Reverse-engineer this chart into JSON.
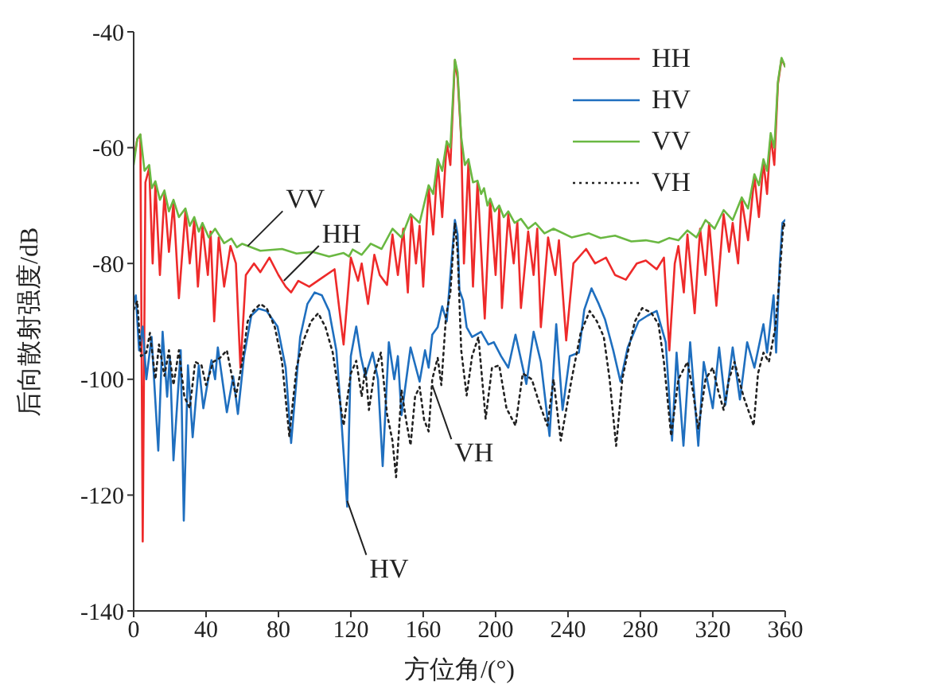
{
  "chart_data": {
    "type": "line",
    "xlabel": "方位角/(°)",
    "ylabel": "后向散射强度/dB",
    "xlim": [
      0,
      360
    ],
    "xticks": [
      0,
      40,
      80,
      120,
      160,
      200,
      240,
      280,
      320,
      360
    ],
    "ylim": [
      -140,
      -40
    ],
    "yticks": [
      -140,
      -120,
      -100,
      -80,
      -60,
      -40
    ],
    "grid": false,
    "legend": "top right",
    "marker": "none",
    "annotations": [
      {
        "text": "VV",
        "x": 63,
        "y": -77
      },
      {
        "text": "HH",
        "x": 83,
        "y": -83
      },
      {
        "text": "VH",
        "x": 165,
        "y": -101
      },
      {
        "text": "HV",
        "x": 118,
        "y": -121
      }
    ],
    "series": [
      {
        "name": "HH",
        "color": "#ee2a2a",
        "line_style": "solid",
        "x": [
          0,
          2,
          3.7,
          5,
          6.5,
          8.6,
          10.5,
          12,
          14.5,
          17,
          19.5,
          22,
          25,
          28.6,
          31,
          33.5,
          35.5,
          38,
          41,
          42.5,
          44.5,
          47,
          50,
          53.5,
          56.5,
          59,
          62,
          66.5,
          70,
          75,
          80,
          84,
          87,
          91,
          97,
          104,
          111,
          116,
          120,
          124,
          126,
          129.5,
          133,
          136,
          140,
          143,
          146,
          149,
          151.5,
          153.5,
          156,
          158,
          160,
          163,
          165.5,
          168,
          170.5,
          173,
          175,
          177.5,
          179,
          181,
          182.5,
          185,
          187.5,
          190,
          194,
          197,
          200,
          202,
          203.5,
          207,
          210,
          212,
          214,
          218,
          221,
          223,
          225,
          229,
          233,
          235,
          239,
          243,
          250,
          255,
          261,
          266,
          272,
          278,
          283,
          289,
          293,
          296,
          299,
          301,
          304,
          306,
          310,
          313,
          316,
          318,
          322,
          326,
          329,
          331,
          334,
          336,
          339.5,
          343,
          345.5,
          348,
          350,
          352,
          354,
          356,
          358,
          360
        ],
        "values": [
          -62,
          -58.5,
          -57.8,
          -128,
          -66,
          -63.5,
          -80,
          -66.2,
          -82,
          -68,
          -78,
          -69.5,
          -86,
          -71,
          -80,
          -72.5,
          -84,
          -73.5,
          -82,
          -74.5,
          -90,
          -75.5,
          -84,
          -77,
          -80,
          -98,
          -82,
          -80,
          -81.5,
          -79,
          -82,
          -84,
          -85,
          -83,
          -84,
          -82.5,
          -81,
          -94,
          -79,
          -83,
          -80,
          -87,
          -78.5,
          -82,
          -83.7,
          -75,
          -82,
          -74,
          -85,
          -72,
          -80,
          -73.5,
          -84,
          -67,
          -75,
          -62.5,
          -72,
          -59,
          -63,
          -45,
          -48,
          -58.5,
          -80,
          -62.5,
          -84,
          -66,
          -89.5,
          -69,
          -82,
          -70.5,
          -87.7,
          -71.5,
          -80,
          -72.8,
          -87.7,
          -74.5,
          -82,
          -74,
          -91,
          -75.5,
          -82,
          -76,
          -93.3,
          -80,
          -77.5,
          -80,
          -79,
          -82,
          -82.8,
          -80,
          -79.5,
          -81,
          -79,
          -95,
          -80,
          -77,
          -85,
          -75,
          -88.6,
          -74,
          -82,
          -73,
          -87.3,
          -71.5,
          -78,
          -73,
          -80,
          -69,
          -76,
          -65,
          -72,
          -62.5,
          -68,
          -58,
          -63,
          -49,
          -44.7,
          -46
        ]
      },
      {
        "name": "HV",
        "color": "#1f6fbf",
        "line_style": "solid",
        "x": [
          0,
          1.2,
          3,
          5,
          7,
          9.9,
          13.6,
          16,
          18.5,
          20,
          22,
          26,
          27.7,
          30,
          32.6,
          36,
          38.5,
          43,
          45,
          46.5,
          51.5,
          55,
          57.6,
          61,
          65,
          69,
          73.5,
          79.5,
          84,
          87,
          92,
          96,
          100,
          104,
          108,
          112,
          114,
          118,
          120,
          123,
          125.5,
          128,
          132,
          135,
          137.6,
          141,
          144,
          146,
          148,
          153,
          158,
          161,
          163,
          165,
          168,
          170.5,
          173,
          175,
          177.5,
          179,
          180,
          182,
          184,
          187,
          192,
          196,
          199,
          203,
          207,
          211,
          217,
          221,
          225,
          229.8,
          233.5,
          237,
          241,
          246,
          249,
          253,
          257,
          260.5,
          265,
          269,
          273,
          279,
          284,
          289,
          294,
          297.5,
          300,
          303.8,
          307.5,
          312,
          315,
          320,
          323.5,
          327,
          331,
          335,
          339,
          343,
          348,
          350,
          353.6,
          355,
          357,
          358.5,
          360
        ],
        "values": [
          -87,
          -85.5,
          -95,
          -90.9,
          -100,
          -92.7,
          -112.3,
          -91.8,
          -103,
          -96,
          -114,
          -95,
          -124.4,
          -97.6,
          -110,
          -97.6,
          -105,
          -96.7,
          -100,
          -94.5,
          -105.7,
          -99.5,
          -106,
          -96,
          -89,
          -87.8,
          -88.2,
          -90.9,
          -98,
          -111,
          -92.7,
          -87,
          -85,
          -85.5,
          -88.2,
          -95,
          -103.4,
          -122,
          -96,
          -90.9,
          -96,
          -99.5,
          -95.4,
          -100,
          -115,
          -93.6,
          -100,
          -96,
          -106.2,
          -94.5,
          -100.4,
          -95,
          -98,
          -92.3,
          -91,
          -87.4,
          -90,
          -82,
          -72.5,
          -75,
          -84.6,
          -86.4,
          -91,
          -92.7,
          -91.8,
          -94,
          -93.6,
          -96,
          -98,
          -92.3,
          -100.8,
          -91.8,
          -97,
          -109.8,
          -90.5,
          -105.3,
          -96,
          -95.4,
          -88,
          -84.3,
          -87,
          -89.7,
          -95,
          -100.4,
          -94.5,
          -90,
          -89,
          -88.2,
          -93.6,
          -110.6,
          -95.4,
          -111.5,
          -93.6,
          -111.5,
          -97,
          -105,
          -94.5,
          -104.4,
          -94.5,
          -103.5,
          -93.6,
          -98,
          -90.5,
          -95.4,
          -85.5,
          -95.4,
          -80,
          -73,
          -72.5
        ]
      },
      {
        "name": "VV",
        "color": "#6ab842",
        "line_style": "solid",
        "x": [
          0,
          2,
          3.7,
          6,
          8.6,
          10,
          12,
          14.5,
          17,
          19.5,
          22,
          25,
          28.6,
          31,
          33.5,
          36,
          38,
          41.5,
          45,
          50,
          54,
          57,
          60,
          70,
          82,
          90,
          99,
          108,
          116,
          119,
          121,
          126,
          131,
          137,
          143,
          148,
          153,
          158,
          163,
          165.5,
          168,
          170.5,
          173,
          175,
          177.5,
          179,
          181,
          183,
          185,
          187.5,
          190,
          192,
          193.6,
          195.5,
          197,
          199.5,
          202,
          204.5,
          207,
          210.5,
          214,
          218,
          222,
          227,
          232,
          242,
          251.6,
          258,
          266,
          275,
          283,
          290,
          296,
          301,
          306,
          311,
          316,
          321,
          326,
          331,
          336,
          339.5,
          343,
          345.5,
          348,
          350,
          352,
          354,
          356,
          358,
          360
        ],
        "values": [
          -63,
          -58.5,
          -57.7,
          -64,
          -63,
          -67,
          -65.8,
          -69,
          -67.4,
          -71,
          -69,
          -72,
          -70.5,
          -73.5,
          -72,
          -74.5,
          -73,
          -75.5,
          -74,
          -76.5,
          -75.7,
          -77.2,
          -76.6,
          -77.8,
          -77.5,
          -78.3,
          -78,
          -78.8,
          -78.2,
          -78.8,
          -77.6,
          -78.5,
          -76.6,
          -77.5,
          -74,
          -75.5,
          -71.5,
          -73,
          -66.5,
          -68,
          -62,
          -64,
          -58.9,
          -60,
          -44.8,
          -47,
          -58.2,
          -63,
          -62,
          -66,
          -65.7,
          -68,
          -67,
          -70,
          -68.8,
          -71,
          -70,
          -72,
          -71,
          -73,
          -72.3,
          -74,
          -73,
          -74.8,
          -74,
          -75.5,
          -74.8,
          -75.6,
          -75.2,
          -76.2,
          -76,
          -76.4,
          -75.6,
          -76,
          -74.3,
          -75.5,
          -72.5,
          -74,
          -70.8,
          -72.5,
          -68.6,
          -70.5,
          -64.6,
          -66.5,
          -62,
          -64,
          -57.5,
          -60,
          -48.6,
          -44.5,
          -46
        ]
      },
      {
        "name": "VH",
        "color": "#222222",
        "line_style": "dotted",
        "x": [
          0,
          2,
          4,
          7,
          9,
          12,
          14,
          17,
          19.5,
          22,
          25,
          28,
          31,
          34,
          37.5,
          40,
          44,
          47.7,
          51.5,
          56.5,
          60,
          63,
          66,
          70,
          73.5,
          78,
          82,
          86,
          90,
          93.5,
          98,
          102,
          106,
          110,
          116,
          120,
          123,
          126,
          128,
          130,
          133,
          136.6,
          140,
          143,
          145,
          148,
          150.5,
          153,
          155.5,
          158,
          160.5,
          163,
          165,
          168,
          170,
          172.6,
          175,
          177.5,
          179,
          181,
          184,
          187,
          190.5,
          194.5,
          198,
          202,
          206,
          211,
          215,
          220,
          224,
          228.6,
          232,
          236,
          242,
          247,
          252,
          256,
          259.8,
          263,
          266.6,
          270,
          273,
          277,
          281,
          286,
          290,
          293,
          297,
          301,
          306,
          309,
          312,
          316,
          320,
          323,
          326,
          329,
          332,
          337,
          342.6,
          345,
          348,
          351,
          354.6,
          357,
          359,
          360
        ],
        "values": [
          -88,
          -86.5,
          -96,
          -95.4,
          -92,
          -100,
          -94,
          -99.4,
          -95,
          -101,
          -95,
          -103,
          -105,
          -97,
          -97.6,
          -101,
          -97,
          -96.3,
          -95,
          -103,
          -97,
          -90,
          -88.2,
          -87,
          -87.7,
          -91,
          -97,
          -109.8,
          -98,
          -93.6,
          -90,
          -88.6,
          -91,
          -95.4,
          -108,
          -99,
          -96.8,
          -103,
          -98,
          -105.3,
          -99,
          -95.4,
          -106,
          -110.6,
          -116.9,
          -101.8,
          -107,
          -111.4,
          -103,
          -101.3,
          -107,
          -109,
          -100,
          -96.3,
          -101,
          -89.1,
          -85,
          -73,
          -78,
          -95,
          -102.8,
          -96,
          -92.7,
          -106.8,
          -98,
          -97.6,
          -105,
          -108,
          -99,
          -100,
          -104,
          -108,
          -100,
          -110.6,
          -100,
          -92,
          -88.2,
          -90,
          -92.7,
          -100,
          -111.5,
          -100,
          -95.4,
          -90,
          -87.7,
          -88.5,
          -90.5,
          -97,
          -109.8,
          -100,
          -97,
          -102,
          -108.6,
          -100,
          -98,
          -102,
          -105.3,
          -100,
          -97,
          -103,
          -108,
          -99,
          -95.4,
          -97,
          -91,
          -82,
          -73,
          -73.5
        ]
      }
    ]
  }
}
